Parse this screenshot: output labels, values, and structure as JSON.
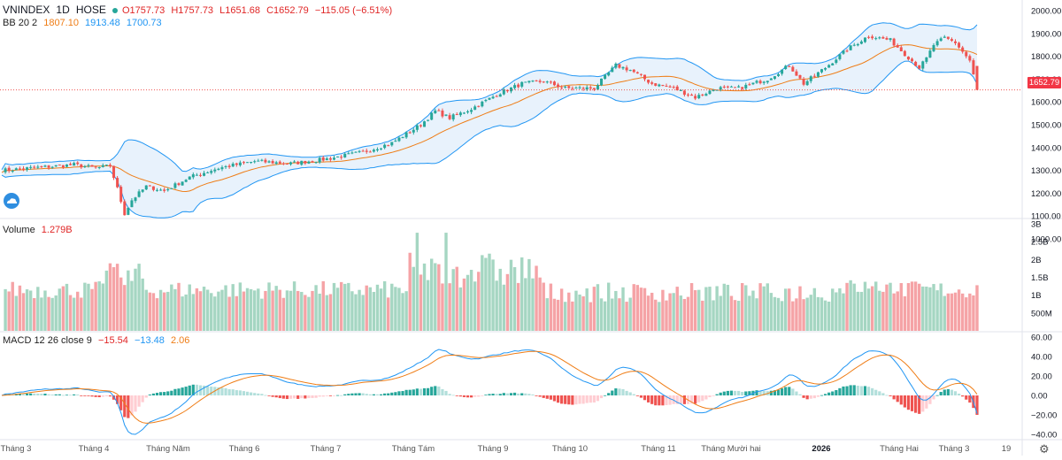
{
  "legend": {
    "main": {
      "symbol": "VNINDEX",
      "interval": "1D",
      "exchange": "HOSE",
      "open": "O1757.73",
      "high": "H1757.73",
      "low": "L1651.68",
      "close": "C1652.79",
      "change": "−115.05 (−6.51%)"
    },
    "bb": {
      "label": "BB 20 2",
      "basis": "1807.10",
      "upper": "1913.48",
      "lower": "1700.73"
    },
    "volume": {
      "label": "Volume",
      "value": "1.279B"
    },
    "macd": {
      "label": "MACD 12 26 close 9",
      "hist": "−15.54",
      "macd": "−13.48",
      "signal": "2.06"
    }
  },
  "last_price_label": "1652.79",
  "colors": {
    "up": "#26a69a",
    "down": "#ef5350",
    "up_volume": "#a5d6c2",
    "down_volume": "#f5a3a6",
    "bb_band": "#2196f3",
    "bb_basis": "#ef7d16",
    "bb_fill": "#e8f2fc",
    "macd_line": "#2196f3",
    "signal_line": "#ef7d16",
    "hist_up_strong": "#26a69a",
    "hist_up_weak": "#b2dfdb",
    "hist_down_strong": "#ef5350",
    "hist_down_weak": "#ffcdd2",
    "price_line": "#ef5350"
  },
  "icons": {
    "logo": "cloud-logo-icon",
    "settings": "gear-icon"
  },
  "chart_data": [
    {
      "type": "candlestick",
      "title": "VNINDEX 1D HOSE",
      "ylim": [
        1000,
        2000
      ],
      "y_ticks": [
        "2000.00",
        "1900.00",
        "1800.00",
        "1700.00",
        "1600.00",
        "1500.00",
        "1400.00",
        "1300.00",
        "1200.00",
        "1100.00",
        "1000.00"
      ],
      "x_ticks": [
        "Tháng 3",
        "Tháng 4",
        "Tháng Năm",
        "Tháng 6",
        "Tháng 7",
        "Tháng Tám",
        "Tháng 9",
        "Tháng 10",
        "Tháng 11",
        "Tháng Mười hai",
        "2026",
        "Tháng Hai",
        "Tháng 3",
        "19"
      ],
      "key_points": [
        {
          "date": "Tháng 3",
          "close": 1300
        },
        {
          "date": "Tháng 4 (early)",
          "close": 1320
        },
        {
          "date": "Tháng 4 (low)",
          "close": 1075
        },
        {
          "date": "Tháng 6",
          "close": 1350
        },
        {
          "date": "Tháng 7",
          "close": 1370
        },
        {
          "date": "Tháng Tám",
          "close": 1560
        },
        {
          "date": "Tháng 9",
          "close": 1680
        },
        {
          "date": "Tháng 10",
          "close": 1760
        },
        {
          "date": "Tháng 11",
          "close": 1610
        },
        {
          "date": "Tháng Mười hai",
          "close": 1720
        },
        {
          "date": "2026",
          "close": 1880
        },
        {
          "date": "Tháng Hai",
          "close": 1755
        },
        {
          "date": "Tháng 3 (last)",
          "close": 1652.79
        }
      ],
      "last_bar": {
        "open": 1757.73,
        "high": 1757.73,
        "low": 1651.68,
        "close": 1652.79,
        "change": -115.05,
        "change_pct": -6.51
      },
      "bollinger": {
        "period": 20,
        "mult": 2,
        "basis": 1807.1,
        "upper": 1913.48,
        "lower": 1700.73
      }
    },
    {
      "type": "bar",
      "title": "Volume",
      "y_ticks": [
        "3B",
        "2.5B",
        "2B",
        "1.5B",
        "1B",
        "500M"
      ],
      "ylim": [
        0,
        3.1
      ],
      "last_value": 1.279,
      "unit": "B"
    },
    {
      "type": "line",
      "title": "MACD 12 26 close 9",
      "y_ticks": [
        "60.00",
        "40.00",
        "20.00",
        "0.00",
        "−20.00",
        "−40.00"
      ],
      "ylim": [
        -44,
        64
      ],
      "last": {
        "histogram": -15.54,
        "macd": -13.48,
        "signal": 2.06
      }
    }
  ]
}
